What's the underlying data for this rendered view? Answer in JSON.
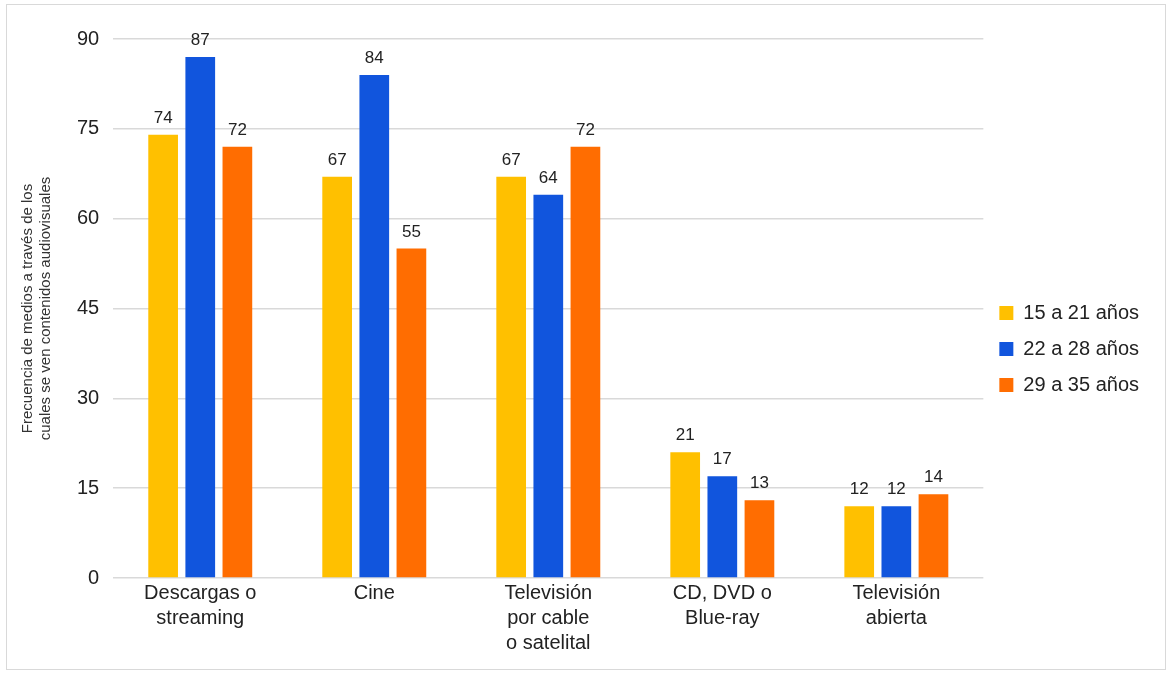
{
  "chart_data": {
    "type": "bar",
    "ylabel": "Frecuencia de medios a través de los\ncuales se ven contenidos audiovisuales",
    "categories": [
      "Descargas o\nstreaming",
      "Cine",
      "Televisión\npor cable\no satelital",
      "CD, DVD o\nBlue-ray",
      "Televisión\nabierta"
    ],
    "series": [
      {
        "name": "15 a 21 años",
        "color": "#ffc000",
        "values": [
          74,
          67,
          67,
          21,
          12
        ]
      },
      {
        "name": "22 a 28 años",
        "color": "#1155dd",
        "values": [
          87,
          84,
          64,
          17,
          12
        ]
      },
      {
        "name": "29 a 35 años",
        "color": "#ff6d01",
        "values": [
          72,
          55,
          72,
          13,
          14
        ]
      }
    ],
    "ylim": [
      0,
      90
    ],
    "yticks": [
      0,
      15,
      30,
      45,
      60,
      75,
      90
    ],
    "grid": "y",
    "legend": "right",
    "data_labels": true
  }
}
